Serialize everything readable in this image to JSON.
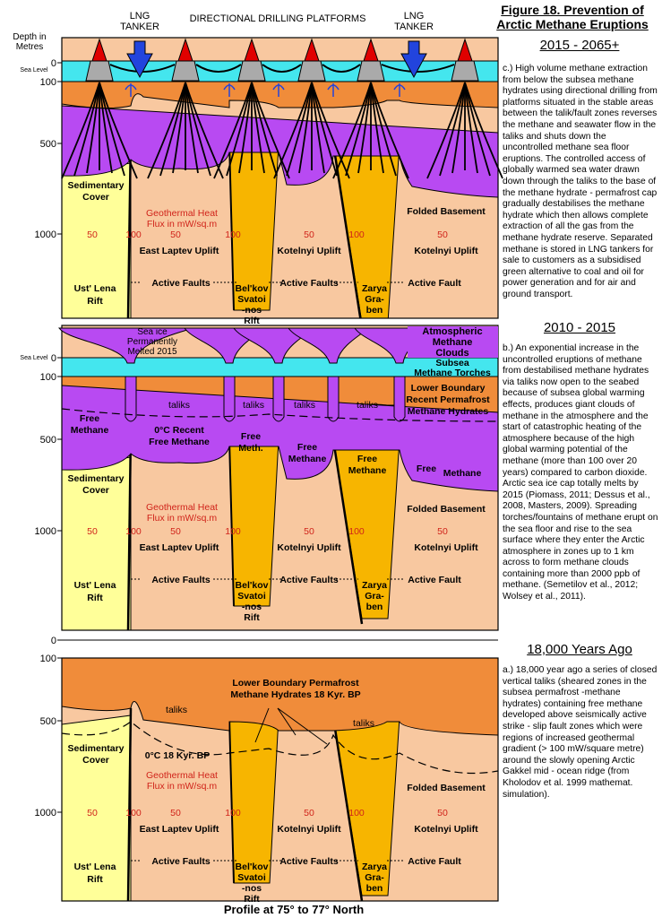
{
  "figure": {
    "title_line1": "Figure 18. Prevention of",
    "title_line2": "Arctic Methane Eruptions",
    "footer": "Profile at 75° to 77° North"
  },
  "top_labels": {
    "lng_tanker_left": [
      "LNG",
      "TANKER"
    ],
    "lng_tanker_right": [
      "LNG",
      "TANKER"
    ],
    "platforms": "DIRECTIONAL  DRILLING  PLATFORMS",
    "depth_heading": [
      "Depth in",
      "Metres"
    ]
  },
  "axis": {
    "sea_level": "Sea Level",
    "ticks": [
      "0",
      "100",
      "500",
      "1000"
    ]
  },
  "geology": {
    "sedimentary_cover": [
      "Sedimentary",
      "Cover"
    ],
    "geothermal_heat": [
      "Geothermal Heat",
      "Flux in mW/sq.m"
    ],
    "flux_50": "50",
    "flux_100": "100",
    "east_laptev_uplift": "East Laptev Uplift",
    "kotelnyi_uplift": "Kotelnyi Uplift",
    "folded_basement": "Folded Basement",
    "ust_lena_rift": [
      "Ust' Lena",
      "Rift"
    ],
    "active_faults": "Active Faults",
    "active_fault": "Active Fault",
    "belkov_rift": [
      "Bel'kov",
      "Svatoi",
      "-nos",
      "Rift"
    ],
    "zarya_graben": [
      "Zarya",
      "Gra-",
      "ben"
    ]
  },
  "panel_c": {
    "heading": "2015 - 2065+",
    "paragraph": "c.) High volume methane extraction from below the subsea methane hydrates using directional drilling from platforms situated in the stable areas between the talik/fault zones reverses the methane and seawater flow in the taliks and shuts down the uncontrolled methane sea floor eruptions. The controlled access of globally warmed sea water drawn down through the taliks to the base of the methane hydrate - permafrost cap gradually destabilises the methane hydrate which then allows complete extraction of all the gas from the methane hydrate reserve. Separated methane is stored in LNG tankers for sale to customers as a subsidised green alternative to coal and oil for power generation and for air and ground transport."
  },
  "panel_b": {
    "heading": "2010 - 2015",
    "sea_ice": [
      "Sea ice",
      "Permanently",
      "Melted 2015"
    ],
    "atmospheric": [
      "Atmospheric",
      "Methane",
      "Clouds"
    ],
    "subsea_torches": [
      "Subsea",
      "Methane Torches"
    ],
    "taliks": "taliks",
    "free_methane": [
      "Free",
      "Methane"
    ],
    "recent_free_methane": [
      "0°C  Recent",
      "Free Methane"
    ],
    "free_meth": [
      "Free",
      "Meth."
    ],
    "free": "Free",
    "methane": "Methane",
    "lower_boundary": [
      "Lower Boundary",
      "Recent Permafrost",
      "Methane Hydrates"
    ],
    "paragraph": "b.) An exponential increase in the uncontrolled eruptions of methane from destabilised methane hydrates via taliks now open to the seabed because of subsea global warming effects, produces giant clouds of methane in the atmosphere and the start of catastrophic heating of the atmosphere because of the high global warming potential of the methane (more than 100 over 20 years) compared to carbon dioxide. Arctic sea ice cap totally melts by 2015 (Piomass, 2011; Dessus et al., 2008, Masters, 2009). Spreading torches/fountains of methane erupt on the sea floor and rise to the sea surface where they enter the Arctic atmosphere in zones up to 1 km across to form methane clouds containing more than 2000 ppb of methane. (Semetilov et al., 2012; Wolsey et al., 2011)."
  },
  "panel_a": {
    "heading": "18,000 Years Ago",
    "lower_boundary": [
      "Lower Boundary Permafrost",
      "Methane Hydrates 18 Kyr. BP"
    ],
    "taliks": "taliks",
    "zero_c": "0°C 18 Kyr. BP",
    "paragraph": "a.) 18,000 year ago a series of closed vertical taliks (sheared zones in the subsea permafrost -methane hydrates) containing free methane developed above seismically active strike - slip fault zones which were regions of increased geothermal gradient (> 100 mW/square metre) around the slowly opening Arctic Gakkel mid - ocean ridge (from Kholodov et al. 1999 mathemat. simulation)."
  },
  "colors": {
    "sea": "#44e6ee",
    "permafrost": "#f08c3a",
    "methane": "#b84af2",
    "basement": "#f8c8a0",
    "sedimentary": "#ffff99",
    "rift": "#f7b500",
    "rift_light": "#ffd23d",
    "platform": "#aaaaaa",
    "cone": "#e00000",
    "arrow": "#2244dd",
    "heat_text": "#d0231a"
  }
}
